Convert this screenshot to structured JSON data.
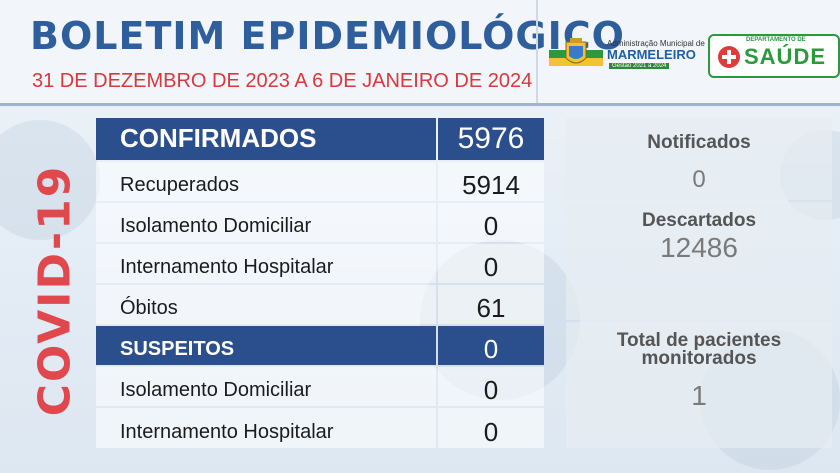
{
  "header": {
    "title": "BOLETIM EPIDEMIOLÓGICO",
    "subtitle": "31 DE DEZEMBRO DE 2023 A 6 DE JANEIRO DE 2024",
    "logo_municipal": {
      "line1": "Administração Municipal de",
      "line2": "MARMELEIRO",
      "line3": "Gestão 2021 a 2024"
    },
    "logo_saude": {
      "department": "DEPARTAMENTO DE",
      "name": "SAÚDE"
    }
  },
  "side_label": "COVID-19",
  "table": {
    "confirmados": {
      "label": "CONFIRMADOS",
      "value": "5976"
    },
    "recuperados": {
      "label": "Recuperados",
      "value": "5914"
    },
    "isolamento": {
      "label": "Isolamento Domiciliar",
      "value": "0"
    },
    "internamento": {
      "label": "Internamento Hospitalar",
      "value": "0"
    },
    "obitos": {
      "label": "Óbitos",
      "value": "61"
    },
    "suspeitos": {
      "label": "SUSPEITOS",
      "value": "0"
    },
    "susp_isolamento": {
      "label": "Isolamento Domiciliar",
      "value": "0"
    },
    "susp_internamento": {
      "label": "Internamento Hospitalar",
      "value": "0"
    }
  },
  "side": {
    "notificados": {
      "label": "Notificados",
      "value": "0"
    },
    "descartados": {
      "label": "Descartados",
      "value": "12486"
    },
    "monitorados": {
      "label_line1": "Total de pacientes",
      "label_line2": "monitorados",
      "value": "1"
    }
  },
  "colors": {
    "primary": "#2b4f8d",
    "title": "#2f5e9d",
    "accent_red": "#e0484e",
    "saude_green": "#2a9a3a"
  }
}
